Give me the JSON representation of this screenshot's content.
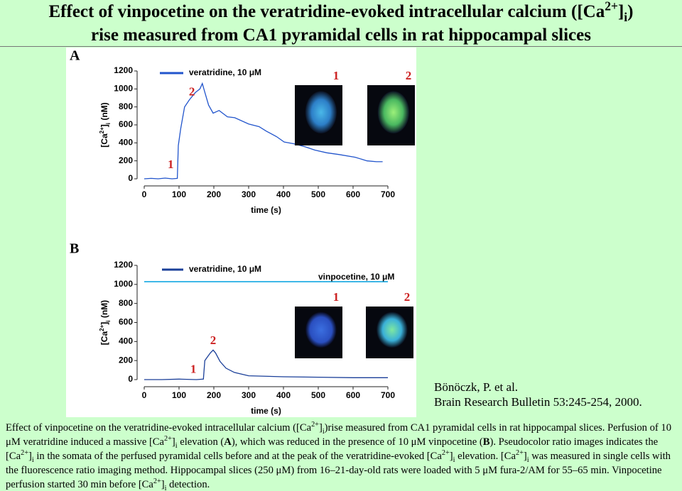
{
  "title": [
    "Effect of vinpocetine on the veratridine-evoked intracellular calcium ([Ca",
    "2+",
    "]",
    "i",
    ")",
    "rise measured from CA1 pyramidal cells in rat hippocampal slices"
  ],
  "chart_data": [
    {
      "type": "line",
      "panel": "A",
      "ylabel": [
        "[Ca",
        "2+",
        "]",
        "i",
        " (nM)"
      ],
      "xlabel": "time (s)",
      "xlim": [
        0,
        700
      ],
      "xticks": [
        0,
        100,
        200,
        300,
        400,
        500,
        600,
        700
      ],
      "ylim": [
        0,
        1200
      ],
      "yticks": [
        0,
        200,
        400,
        600,
        800,
        1000,
        1200
      ],
      "x": [
        0,
        20,
        40,
        60,
        80,
        95,
        98,
        105,
        116,
        130,
        147,
        160,
        167,
        175,
        185,
        198,
        215,
        239,
        260,
        300,
        330,
        351,
        380,
        402,
        430,
        463,
        490,
        524,
        560,
        606,
        640,
        667,
        685
      ],
      "series": [
        {
          "name": "veratridine, 10 μM",
          "color": "#2255cc",
          "values": [
            0,
            5,
            0,
            8,
            0,
            5,
            370,
            560,
            800,
            880,
            960,
            1000,
            1060,
            950,
            820,
            730,
            760,
            690,
            680,
            610,
            580,
            530,
            470,
            410,
            390,
            355,
            320,
            290,
            270,
            240,
            200,
            190,
            190
          ]
        }
      ],
      "annotations": [
        {
          "text": "1",
          "x": 76,
          "y": 150
        },
        {
          "text": "2",
          "x": 137,
          "y": 960
        }
      ],
      "images": [
        {
          "label": "1"
        },
        {
          "label": "2"
        }
      ]
    },
    {
      "type": "line",
      "panel": "B",
      "ylabel": [
        "[Ca",
        "2+",
        "]",
        "i",
        " (nM)"
      ],
      "xlabel": "time (s)",
      "xlim": [
        0,
        700
      ],
      "xticks": [
        0,
        100,
        200,
        300,
        400,
        500,
        600,
        700
      ],
      "ylim": [
        0,
        1200
      ],
      "yticks": [
        0,
        200,
        400,
        600,
        800,
        1000,
        1200
      ],
      "x": [
        0,
        50,
        100,
        150,
        170,
        174,
        180,
        190,
        198,
        205,
        218,
        235,
        259,
        300,
        400,
        500,
        600,
        700
      ],
      "series": [
        {
          "name": "veratridine, 10 μM",
          "color": "#1a3f99",
          "values": [
            0,
            0,
            5,
            0,
            5,
            200,
            230,
            280,
            310,
            280,
            190,
            120,
            75,
            40,
            30,
            25,
            20,
            20
          ]
        }
      ],
      "bars": [
        {
          "name": "vinpocetine, 10 μM",
          "color": "#3fb8e8"
        }
      ],
      "annotations": [
        {
          "text": "1",
          "x": 141,
          "y": 100
        },
        {
          "text": "2",
          "x": 198,
          "y": 400
        }
      ],
      "images": [
        {
          "label": "1"
        },
        {
          "label": "2"
        }
      ]
    }
  ],
  "citation": [
    "Bönöczk, P. et al.",
    "Brain Research Bulletin 53:245-254, 2000."
  ],
  "caption": [
    "Effect of vinpocetine on the veratridine-evoked intracellular calcium ([Ca",
    "2+",
    "]",
    "i",
    ")rise measured from CA1 pyramidal cells in rat hippocampal slices. Perfusion of 10 μM veratridine induced a massive [Ca",
    "2+",
    "]",
    "i",
    " elevation (",
    "A",
    "), which was reduced in the presence of 10 μM vinpocetine (",
    "B",
    "). Pseudocolor ratio images indicates the [Ca",
    "2+",
    "]",
    "i",
    " in the somata of the perfused pyramidal cells before and at the peak of the veratridine-evoked [Ca",
    "2+",
    "]",
    "i",
    " elevation. [Ca",
    "2+",
    "]",
    "i",
    " was measured in single cells with the fluorescence ratio imaging method. Hippocampal slices (250 μM) from 16–21-day-old rats were loaded with 5 μM fura-2/AM for 55–65 min. Vinpocetine perfusion started 30 min before [Ca",
    "2+",
    "]",
    "i",
    " detection."
  ]
}
